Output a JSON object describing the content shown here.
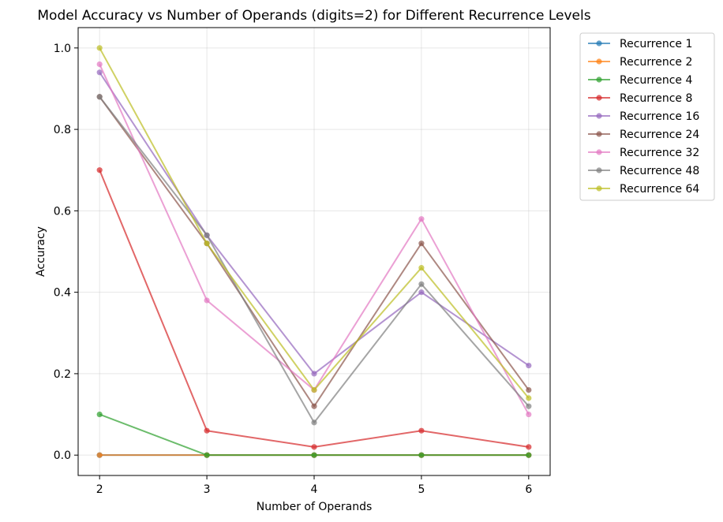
{
  "chart_data": {
    "type": "line",
    "title": "Model Accuracy vs Number of Operands (digits=2) for Different Recurrence Levels",
    "xlabel": "Number of Operands",
    "ylabel": "Accuracy",
    "x": [
      2,
      3,
      4,
      5,
      6
    ],
    "xticks": [
      "2",
      "3",
      "4",
      "5",
      "6"
    ],
    "yticks": [
      "0.0",
      "0.2",
      "0.4",
      "0.6",
      "0.8",
      "1.0"
    ],
    "ytick_values": [
      0.0,
      0.2,
      0.4,
      0.6,
      0.8,
      1.0
    ],
    "xlim": [
      1.8,
      6.2
    ],
    "ylim": [
      -0.05,
      1.05
    ],
    "grid": true,
    "legend_position": "outside top-right",
    "series": [
      {
        "name": "Recurrence 1",
        "color": "#1f77b4",
        "values": [
          0.0,
          0.0,
          0.0,
          0.0,
          0.0
        ]
      },
      {
        "name": "Recurrence 2",
        "color": "#ff7f0e",
        "values": [
          0.0,
          0.0,
          0.0,
          0.0,
          0.0
        ]
      },
      {
        "name": "Recurrence 4",
        "color": "#2ca02c",
        "values": [
          0.1,
          0.0,
          0.0,
          0.0,
          0.0
        ]
      },
      {
        "name": "Recurrence 8",
        "color": "#d62728",
        "values": [
          0.7,
          0.06,
          0.02,
          0.06,
          0.02
        ]
      },
      {
        "name": "Recurrence 16",
        "color": "#9467bd",
        "values": [
          0.94,
          0.54,
          0.2,
          0.4,
          0.22
        ]
      },
      {
        "name": "Recurrence 24",
        "color": "#8c564b",
        "values": [
          0.88,
          0.52,
          0.12,
          0.52,
          0.16
        ]
      },
      {
        "name": "Recurrence 32",
        "color": "#e377c2",
        "values": [
          0.96,
          0.38,
          0.16,
          0.58,
          0.1
        ]
      },
      {
        "name": "Recurrence 48",
        "color": "#7f7f7f",
        "values": [
          0.88,
          0.54,
          0.08,
          0.42,
          0.12
        ]
      },
      {
        "name": "Recurrence 64",
        "color": "#bcbd22",
        "values": [
          1.0,
          0.52,
          0.16,
          0.46,
          0.14
        ]
      }
    ]
  }
}
